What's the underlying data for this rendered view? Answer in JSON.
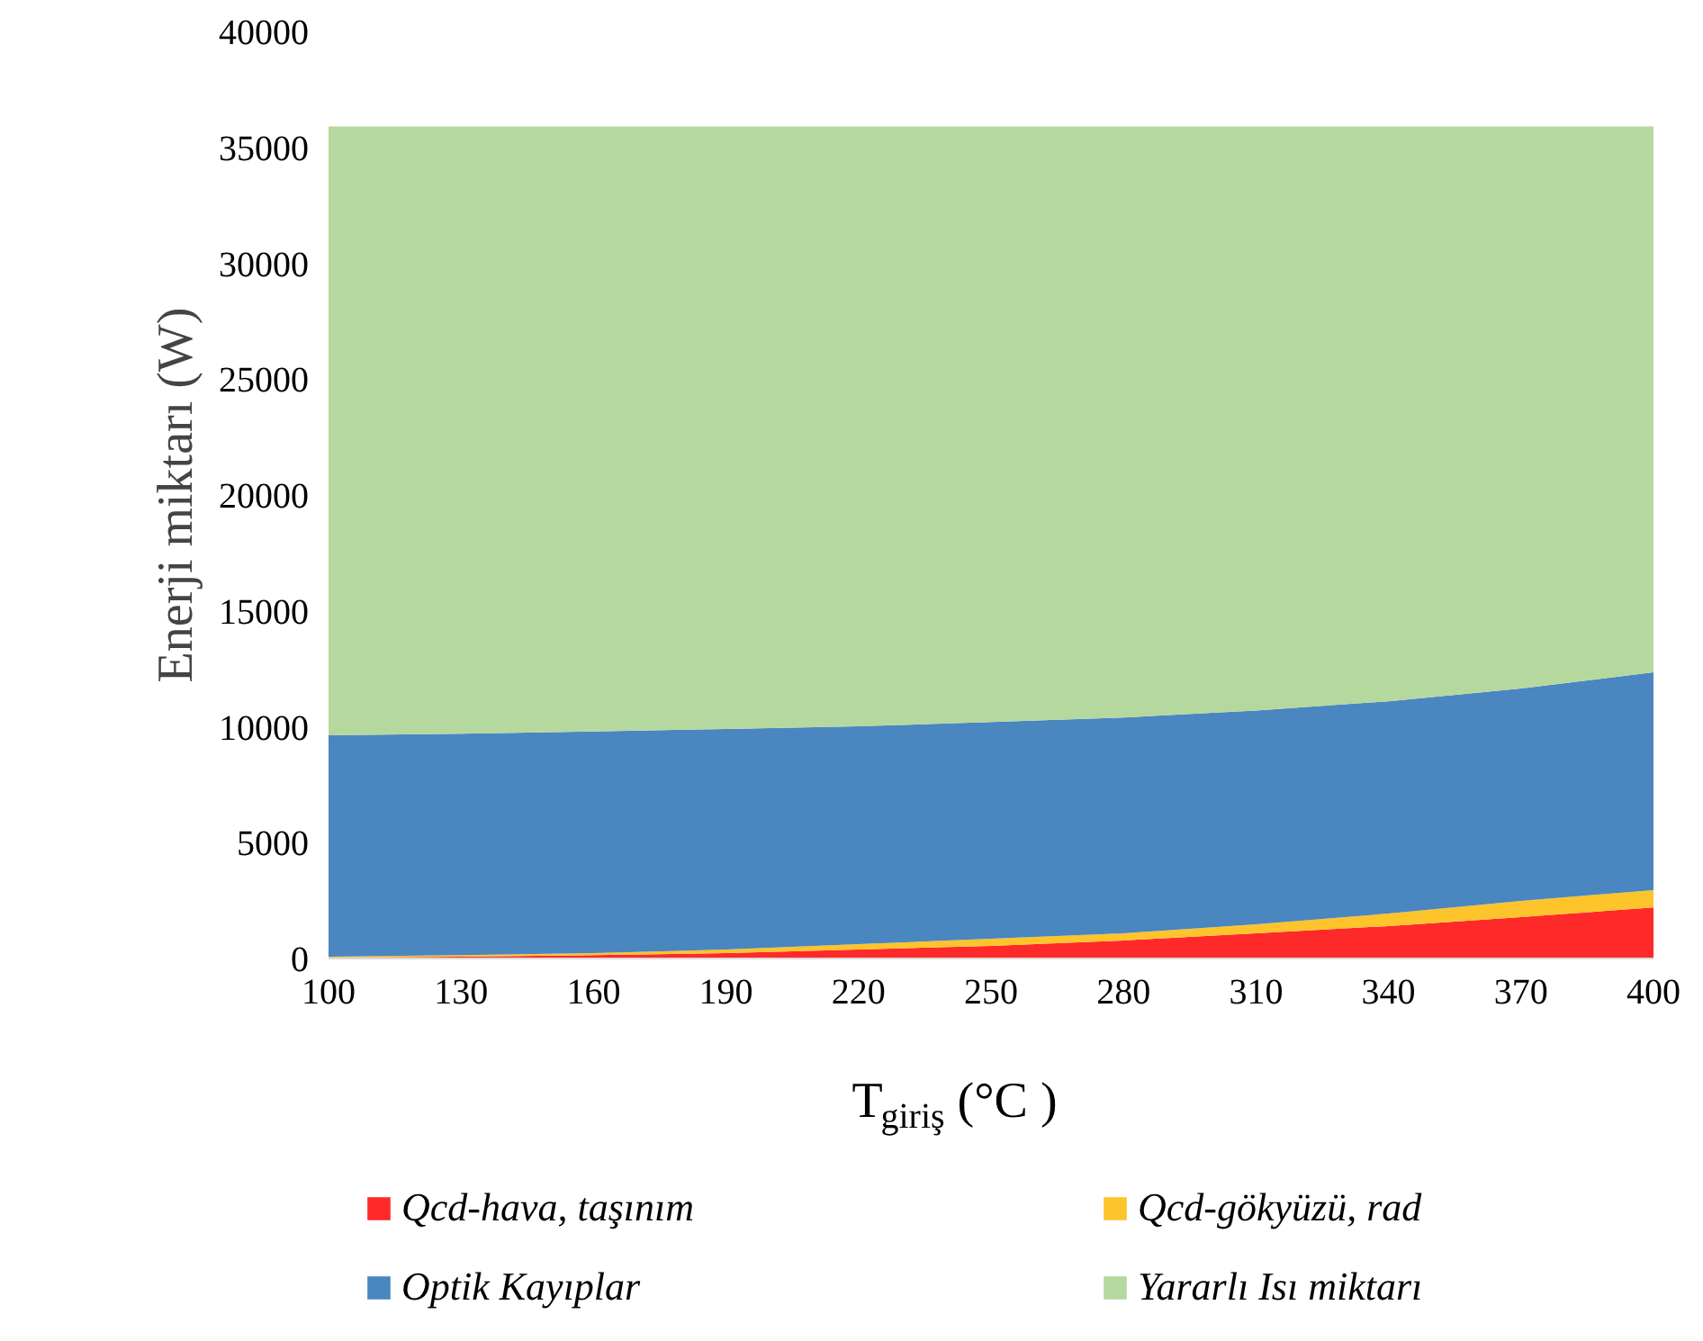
{
  "chart_data": {
    "type": "area",
    "stacked": true,
    "xlabel": "T$_{giriş}$ (°C )",
    "ylabel": "Enerji miktarı (W)",
    "x": [
      100,
      130,
      160,
      190,
      220,
      250,
      280,
      310,
      340,
      370,
      400
    ],
    "xlim": [
      100,
      400
    ],
    "xticks": [
      100,
      130,
      160,
      190,
      220,
      250,
      280,
      310,
      340,
      370,
      400
    ],
    "ylim": [
      0,
      40000
    ],
    "yticks": [
      0,
      5000,
      10000,
      15000,
      20000,
      25000,
      30000,
      35000,
      40000
    ],
    "grid": "y",
    "legend": "bottom",
    "series": [
      {
        "name": "Qcd-hava, taşınım",
        "color": "#fe2a2a",
        "values": [
          40,
          80,
          150,
          230,
          390,
          540,
          780,
          1090,
          1400,
          1790,
          2200
        ]
      },
      {
        "name": "Qcd-gökyüzü, rad",
        "color": "#fdc42b",
        "values": [
          40,
          70,
          80,
          160,
          230,
          310,
          310,
          390,
          540,
          700,
          750
        ]
      },
      {
        "name": "Optik Kayıplar",
        "color": "#4a86c0",
        "values": [
          9550,
          9550,
          9570,
          9510,
          9400,
          9350,
          9310,
          9220,
          9160,
          9160,
          9400
        ]
      },
      {
        "name": "Yararlı Isı miktarı",
        "color": "#b5d89f",
        "values": [
          26270,
          26200,
          26100,
          26000,
          25880,
          25700,
          25500,
          25200,
          24800,
          24250,
          23550
        ]
      }
    ]
  }
}
